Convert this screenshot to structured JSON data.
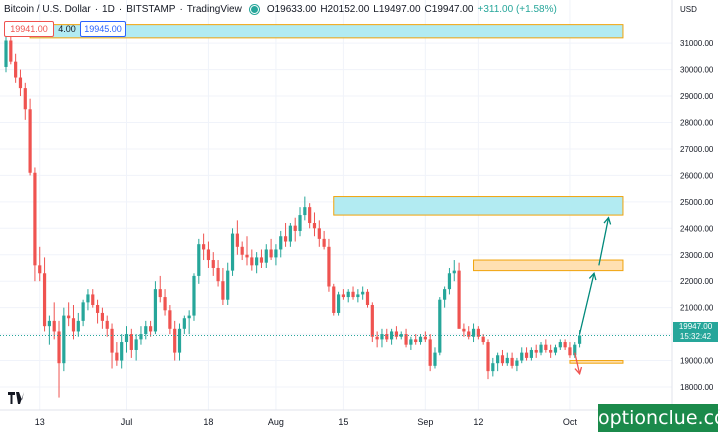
{
  "header": {
    "symbol": "Bitcoin / U.S. Dollar",
    "interval": "1D",
    "exchange": "BITSTAMP",
    "source": "TradingView",
    "open": "O19633.00",
    "high": "H20152.00",
    "low": "L19497.00",
    "close": "C19947.00",
    "change": "+311.00 (+1.58%)"
  },
  "trade": {
    "sell": "19941.00",
    "spread": "4.00",
    "buy": "19945.00"
  },
  "last_price": {
    "price": "19947.00",
    "countdown": "15:32:42"
  },
  "watermark": "optionclue.com",
  "colors": {
    "up": "#26a69a",
    "down": "#ef5350",
    "zone_fill": "#b2ebf2",
    "zone_border": "#f0a30a",
    "orange_fill": "#ffe0b2",
    "arrow_up": "#00897b",
    "arrow_down": "#ef5350"
  },
  "chart_data": {
    "type": "candlestick",
    "currency": "USD",
    "ylim": [
      17000,
      32000
    ],
    "y_ticks": [
      18000,
      19000,
      20000,
      21000,
      22000,
      23000,
      24000,
      25000,
      26000,
      27000,
      28000,
      29000,
      30000,
      31000
    ],
    "x_ticks": [
      {
        "label": "13",
        "index": 7
      },
      {
        "label": "Jul",
        "index": 25
      },
      {
        "label": "18",
        "index": 42
      },
      {
        "label": "Aug",
        "index": 56
      },
      {
        "label": "15",
        "index": 70
      },
      {
        "label": "Sep",
        "index": 87
      },
      {
        "label": "12",
        "index": 98
      },
      {
        "label": "Oct",
        "index": 117
      }
    ],
    "candles": [
      [
        30100,
        31500,
        29900,
        31100
      ],
      [
        31100,
        31600,
        30200,
        30300
      ],
      [
        30300,
        30600,
        29500,
        29700
      ],
      [
        29700,
        30000,
        29000,
        29300
      ],
      [
        29300,
        29500,
        28100,
        28500
      ],
      [
        28500,
        28900,
        26000,
        26100
      ],
      [
        26100,
        26300,
        22000,
        22600
      ],
      [
        22600,
        23300,
        22000,
        22300
      ],
      [
        22300,
        22900,
        20100,
        20300
      ],
      [
        20300,
        20700,
        19600,
        20500
      ],
      [
        20500,
        21200,
        19800,
        20100
      ],
      [
        20100,
        20500,
        17600,
        18900
      ],
      [
        18900,
        21000,
        18600,
        20700
      ],
      [
        20700,
        21200,
        20300,
        20600
      ],
      [
        20600,
        21100,
        19800,
        20100
      ],
      [
        20100,
        20800,
        19900,
        20500
      ],
      [
        20500,
        21300,
        20300,
        21200
      ],
      [
        21200,
        21700,
        20900,
        21500
      ],
      [
        21500,
        21700,
        21000,
        21100
      ],
      [
        21100,
        21300,
        20400,
        20800
      ],
      [
        20800,
        21000,
        20200,
        20500
      ],
      [
        20500,
        20700,
        19900,
        20200
      ],
      [
        20200,
        20400,
        18700,
        19300
      ],
      [
        19300,
        19700,
        18800,
        19000
      ],
      [
        19000,
        20000,
        18700,
        19700
      ],
      [
        19700,
        20300,
        19300,
        20000
      ],
      [
        20000,
        20200,
        19100,
        19400
      ],
      [
        19400,
        20000,
        19000,
        19800
      ],
      [
        19800,
        20300,
        19600,
        20000
      ],
      [
        20000,
        20500,
        19800,
        20300
      ],
      [
        20300,
        20500,
        19900,
        20100
      ],
      [
        20100,
        22000,
        20000,
        21700
      ],
      [
        21700,
        22200,
        21200,
        21400
      ],
      [
        21400,
        21700,
        20700,
        20900
      ],
      [
        20900,
        21100,
        20000,
        20200
      ],
      [
        20200,
        20500,
        19000,
        19300
      ],
      [
        19300,
        20400,
        19000,
        20200
      ],
      [
        20200,
        20700,
        20000,
        20600
      ],
      [
        20600,
        20900,
        20000,
        20700
      ],
      [
        20700,
        22300,
        20500,
        22200
      ],
      [
        22200,
        23600,
        21900,
        23400
      ],
      [
        23400,
        23800,
        22800,
        23200
      ],
      [
        23200,
        23500,
        22500,
        22800
      ],
      [
        22800,
        23100,
        22200,
        22500
      ],
      [
        22500,
        22800,
        21800,
        22000
      ],
      [
        22000,
        22500,
        21100,
        21300
      ],
      [
        21300,
        22700,
        21100,
        22400
      ],
      [
        22400,
        24000,
        22200,
        23800
      ],
      [
        23800,
        24300,
        23000,
        23300
      ],
      [
        23300,
        23500,
        22800,
        23000
      ],
      [
        23000,
        23700,
        22600,
        22900
      ],
      [
        22900,
        23200,
        22400,
        22600
      ],
      [
        22600,
        23100,
        22300,
        22900
      ],
      [
        22900,
        23200,
        22500,
        22700
      ],
      [
        22700,
        23400,
        22500,
        23200
      ],
      [
        23200,
        23600,
        22800,
        22900
      ],
      [
        22900,
        23400,
        22600,
        23200
      ],
      [
        23200,
        23900,
        22900,
        23700
      ],
      [
        23700,
        24200,
        23300,
        23500
      ],
      [
        23500,
        24200,
        23300,
        24100
      ],
      [
        24100,
        24400,
        23500,
        23900
      ],
      [
        23900,
        24800,
        23700,
        24500
      ],
      [
        24500,
        25200,
        24300,
        24800
      ],
      [
        24800,
        24950,
        24000,
        24200
      ],
      [
        24200,
        24600,
        23700,
        24000
      ],
      [
        24000,
        24300,
        23300,
        23600
      ],
      [
        23600,
        23900,
        23200,
        23300
      ],
      [
        23300,
        23600,
        21600,
        21800
      ],
      [
        21800,
        21900,
        20700,
        20800
      ],
      [
        20800,
        21600,
        20700,
        21500
      ],
      [
        21500,
        21700,
        21300,
        21400
      ],
      [
        21400,
        21700,
        21200,
        21600
      ],
      [
        21600,
        21800,
        21300,
        21400
      ],
      [
        21400,
        21700,
        21200,
        21500
      ],
      [
        21500,
        21800,
        21300,
        21600
      ],
      [
        21600,
        21700,
        21000,
        21100
      ],
      [
        21100,
        21200,
        19700,
        19900
      ],
      [
        19900,
        20100,
        19500,
        19800
      ],
      [
        19800,
        20200,
        19500,
        20000
      ],
      [
        20000,
        20200,
        19700,
        19800
      ],
      [
        19800,
        20200,
        19600,
        20100
      ],
      [
        20100,
        20300,
        19800,
        19900
      ],
      [
        19900,
        20100,
        19800,
        20000
      ],
      [
        20000,
        20200,
        19500,
        19600
      ],
      [
        19600,
        19900,
        19400,
        19800
      ],
      [
        19800,
        20000,
        19600,
        19700
      ],
      [
        19700,
        20000,
        19600,
        19900
      ],
      [
        19900,
        20100,
        19700,
        19800
      ],
      [
        19800,
        20000,
        18600,
        18800
      ],
      [
        18800,
        19500,
        18700,
        19300
      ],
      [
        19300,
        21400,
        19200,
        21300
      ],
      [
        21300,
        21800,
        21000,
        21700
      ],
      [
        21700,
        22500,
        21500,
        22300
      ],
      [
        22300,
        22800,
        22000,
        22400
      ],
      [
        22400,
        22700,
        20200,
        20200
      ],
      [
        20200,
        20400,
        19900,
        20100
      ],
      [
        20100,
        20300,
        19800,
        19900
      ],
      [
        19900,
        20400,
        19700,
        20200
      ],
      [
        20200,
        20300,
        19800,
        19900
      ],
      [
        19900,
        20000,
        19600,
        19700
      ],
      [
        19700,
        19800,
        18300,
        18600
      ],
      [
        18600,
        19100,
        18400,
        18900
      ],
      [
        18900,
        19300,
        18600,
        19200
      ],
      [
        19200,
        19400,
        18800,
        18900
      ],
      [
        18900,
        19300,
        18800,
        19100
      ],
      [
        19100,
        19300,
        18700,
        18800
      ],
      [
        18800,
        19100,
        18600,
        19000
      ],
      [
        19000,
        19500,
        18900,
        19300
      ],
      [
        19300,
        19500,
        19000,
        19100
      ],
      [
        19100,
        19500,
        19000,
        19400
      ],
      [
        19400,
        19600,
        19100,
        19300
      ],
      [
        19300,
        19700,
        19200,
        19600
      ],
      [
        19600,
        19800,
        19300,
        19400
      ],
      [
        19400,
        19600,
        19100,
        19300
      ],
      [
        19300,
        19600,
        19200,
        19500
      ],
      [
        19500,
        19800,
        19400,
        19700
      ],
      [
        19700,
        19800,
        19400,
        19500
      ],
      [
        19500,
        19700,
        19100,
        19200
      ],
      [
        19200,
        19700,
        19100,
        19600
      ],
      [
        19633,
        20152,
        19497,
        19947
      ]
    ],
    "zones": [
      {
        "kind": "resistance",
        "y0": 31200,
        "y1": 31700,
        "i0": 5,
        "i1": 128
      },
      {
        "kind": "resistance",
        "y0": 24500,
        "y1": 25200,
        "i0": 68,
        "i1": 128
      },
      {
        "kind": "resistance",
        "y0": 22400,
        "y1": 22800,
        "i0": 97,
        "i1": 128
      },
      {
        "kind": "support",
        "y0": 18900,
        "y1": 19000,
        "i0": 117,
        "i1": 128
      }
    ],
    "arrows": [
      {
        "direction": "up",
        "from": [
          119,
          20000
        ],
        "to": [
          122,
          22300
        ]
      },
      {
        "direction": "up",
        "from": [
          123,
          22600
        ],
        "to": [
          125,
          24400
        ]
      },
      {
        "direction": "down",
        "from": [
          118,
          19300
        ],
        "to": [
          119,
          18500
        ]
      }
    ]
  }
}
